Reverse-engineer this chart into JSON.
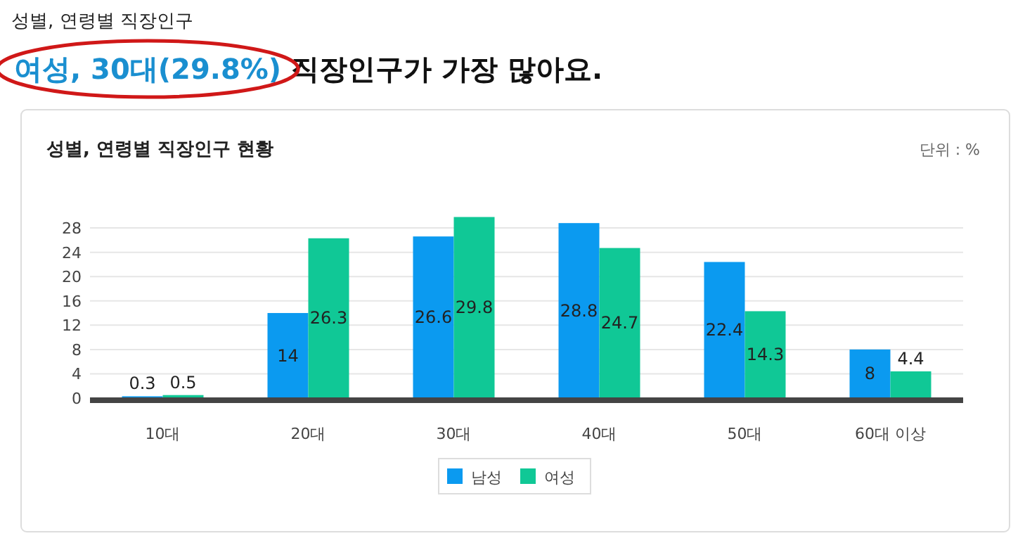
{
  "chart_data": {
    "type": "bar",
    "title": "성별, 연령별 직장인구 현황",
    "subtitle": "단위 : %",
    "annotations": [
      "성별, 연령별 직장인구",
      "여성, 30대(29.8%)",
      " 직장인구가 가장 많아요."
    ],
    "categories": [
      "10대",
      "20대",
      "30대",
      "40대",
      "50대",
      "60대 이상"
    ],
    "series": [
      {
        "name": "남성",
        "color": "#0b9af0",
        "values": [
          0.3,
          14,
          26.6,
          28.8,
          22.4,
          8
        ]
      },
      {
        "name": "여성",
        "color": "#10c896",
        "values": [
          0.5,
          26.3,
          29.8,
          24.7,
          14.3,
          4.4
        ]
      }
    ],
    "ylim": [
      0,
      30
    ],
    "yticks": [
      0,
      4,
      8,
      12,
      16,
      20,
      24,
      28
    ],
    "grid": "y",
    "legend": "bottom",
    "data_labels": true
  }
}
